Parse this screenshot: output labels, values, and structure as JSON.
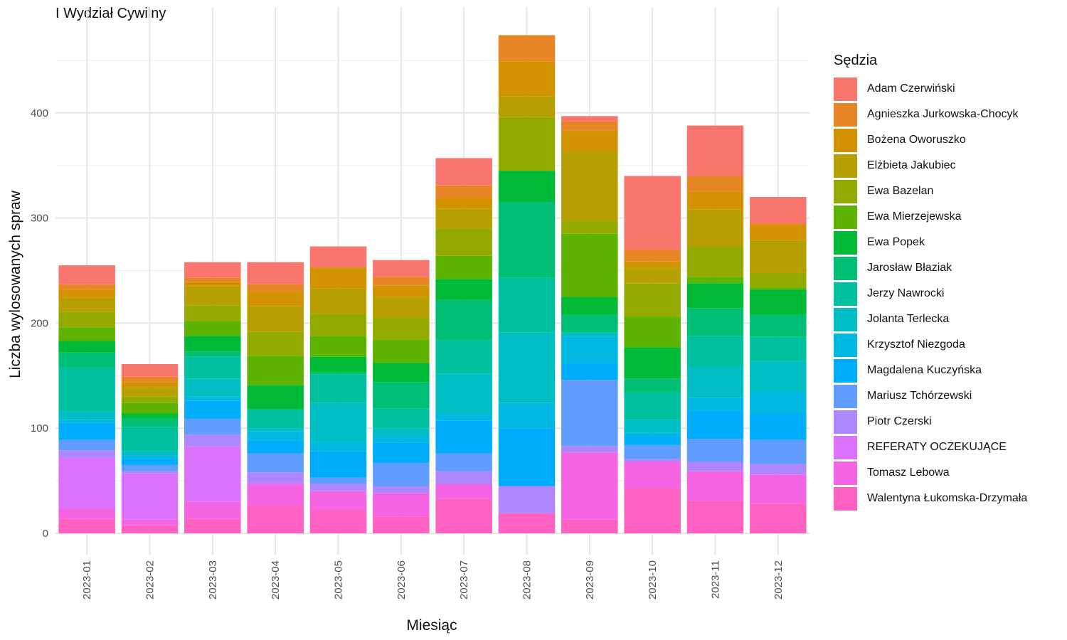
{
  "title": "I Wydział Cywilny",
  "chart_data": {
    "type": "bar",
    "stacked": true,
    "xlabel": "Miesiąc",
    "ylabel": "Liczba wylosowanych spraw",
    "ylim": [
      0,
      480
    ],
    "yticks": [
      0,
      100,
      200,
      300,
      400
    ],
    "grid": true,
    "legend_title": "Sędzia",
    "legend_position": "right",
    "categories": [
      "2023-01",
      "2023-02",
      "2023-03",
      "2023-04",
      "2023-05",
      "2023-06",
      "2023-07",
      "2023-08",
      "2023-09",
      "2023-10",
      "2023-11",
      "2023-12"
    ],
    "series": [
      {
        "name": "Adam Czerwiński",
        "color": "#F8766D",
        "values": [
          18,
          12,
          15,
          21,
          20,
          16,
          26,
          0,
          5,
          70,
          48,
          25
        ]
      },
      {
        "name": "Agnieszka Jurkowska-Chocyk",
        "color": "#E88526",
        "values": [
          5,
          5,
          4,
          7,
          0,
          8,
          12,
          25,
          9,
          11,
          15,
          2
        ]
      },
      {
        "name": "Bożena Oworuszko",
        "color": "#D39200",
        "values": [
          8,
          5,
          4,
          14,
          20,
          11,
          10,
          33,
          19,
          6,
          17,
          14
        ]
      },
      {
        "name": "Elżbieta Jakubiec",
        "color": "#B79F00",
        "values": [
          13,
          9,
          18,
          24,
          24,
          20,
          19,
          20,
          67,
          15,
          35,
          31
        ]
      },
      {
        "name": "Ewa Bazelan",
        "color": "#93AA00",
        "values": [
          15,
          6,
          15,
          23,
          21,
          21,
          26,
          51,
          12,
          32,
          29,
          14
        ]
      },
      {
        "name": "Ewa Mierzejewska",
        "color": "#5EB300",
        "values": [
          13,
          10,
          14,
          28,
          20,
          22,
          22,
          0,
          60,
          29,
          6,
          2
        ]
      },
      {
        "name": "Ewa Popek",
        "color": "#00BA38",
        "values": [
          11,
          5,
          15,
          23,
          15,
          18,
          20,
          30,
          17,
          30,
          24,
          24
        ]
      },
      {
        "name": "Jarosław Błaziak",
        "color": "#00BF74",
        "values": [
          14,
          8,
          5,
          0,
          2,
          25,
          38,
          72,
          17,
          13,
          26,
          21
        ]
      },
      {
        "name": "Jerzy Nawrocki",
        "color": "#00C19F",
        "values": [
          42,
          23,
          21,
          18,
          27,
          19,
          32,
          52,
          0,
          26,
          29,
          23
        ]
      },
      {
        "name": "Jolanta Terlecka",
        "color": "#00BFC4",
        "values": [
          8,
          4,
          17,
          3,
          37,
          7,
          38,
          67,
          4,
          12,
          30,
          29
        ]
      },
      {
        "name": "Krzysztof Niezgoda",
        "color": "#00B9E3",
        "values": [
          3,
          3,
          4,
          9,
          9,
          7,
          7,
          24,
          25,
          4,
          12,
          21
        ]
      },
      {
        "name": "Magdalena Kuczyńska",
        "color": "#00ADFA",
        "values": [
          16,
          6,
          17,
          12,
          25,
          19,
          31,
          55,
          16,
          8,
          27,
          25
        ]
      },
      {
        "name": "Mariusz Tchórzewski",
        "color": "#619CFF",
        "values": [
          10,
          6,
          15,
          18,
          6,
          22,
          17,
          0,
          63,
          13,
          22,
          23
        ]
      },
      {
        "name": "Piotr Czerski",
        "color": "#AE87FF",
        "values": [
          7,
          2,
          11,
          10,
          7,
          7,
          12,
          26,
          6,
          3,
          9,
          10
        ]
      },
      {
        "name": "REFERATY OCZEKUJĄCE",
        "color": "#DB72FB",
        "values": [
          48,
          44,
          53,
          2,
          0,
          0,
          0,
          0,
          0,
          0,
          0,
          0
        ]
      },
      {
        "name": "Tomasz Lebowa",
        "color": "#F564E3",
        "values": [
          10,
          5,
          16,
          19,
          18,
          22,
          14,
          0,
          64,
          25,
          28,
          28
        ]
      },
      {
        "name": "Walentyna Łukomska-Drzymała",
        "color": "#FF61C3",
        "values": [
          14,
          8,
          14,
          27,
          22,
          16,
          33,
          19,
          13,
          43,
          31,
          28
        ]
      }
    ]
  }
}
